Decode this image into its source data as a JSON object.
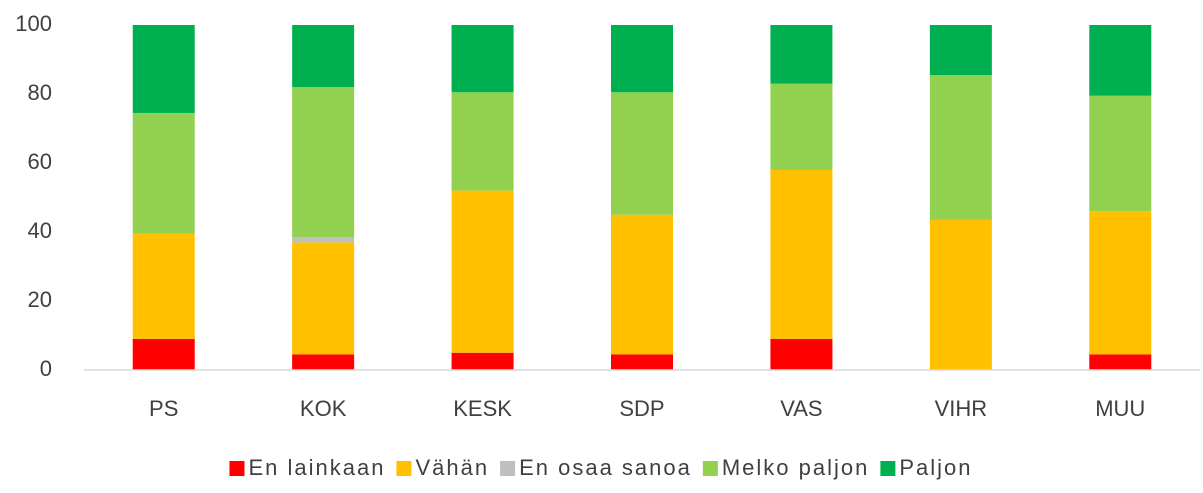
{
  "chart_data": {
    "type": "stacked_bar",
    "categories": [
      "PS",
      "KOK",
      "KESK",
      "SDP",
      "VAS",
      "VIHR",
      "MUU"
    ],
    "series": [
      {
        "name": "En lainkaan",
        "color": "#ff0000",
        "values": [
          9,
          4.5,
          5,
          4.5,
          9,
          0,
          4.5
        ]
      },
      {
        "name": "Vähän",
        "color": "#ffc000",
        "values": [
          30.5,
          32.5,
          47,
          40.5,
          49,
          43.5,
          41.5
        ]
      },
      {
        "name": "En osaa sanoa",
        "color": "#bfbfbf",
        "values": [
          0,
          1.5,
          0,
          0,
          0,
          0,
          0
        ]
      },
      {
        "name": "Melko paljon",
        "color": "#92d050",
        "values": [
          35,
          43.5,
          28.5,
          35.5,
          25,
          42,
          33.5
        ]
      },
      {
        "name": "Paljon",
        "color": "#00b050",
        "values": [
          25.5,
          18,
          19.5,
          19.5,
          17,
          14.5,
          20.5
        ]
      }
    ],
    "ylim": [
      0,
      100
    ],
    "yticks": [
      0,
      20,
      40,
      60,
      80,
      100
    ],
    "grid": false,
    "legend": "bottom"
  }
}
